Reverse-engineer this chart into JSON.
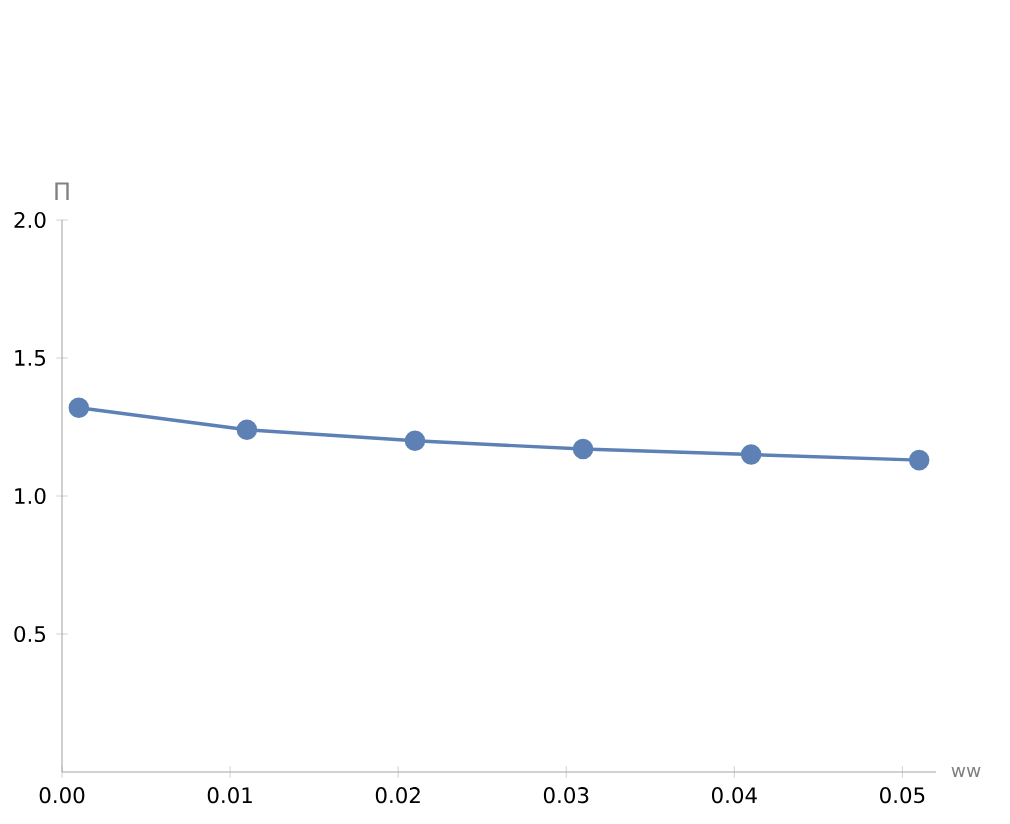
{
  "chart_data": {
    "type": "line",
    "xlabel": "ww",
    "ylabel": "Π",
    "x": [
      0.001,
      0.011,
      0.021,
      0.031,
      0.041,
      0.051
    ],
    "series": [
      {
        "color": "#5e81b5",
        "values": [
          1.32,
          1.24,
          1.2,
          1.17,
          1.15,
          1.13
        ]
      }
    ],
    "xlim": [
      0,
      0.052
    ],
    "ylim": [
      0,
      2.0
    ],
    "xticks": [
      {
        "value": 0,
        "label": "0.00"
      },
      0.01,
      0.02,
      0.03,
      0.04,
      0.05
    ],
    "yticks": [
      0.5,
      {
        "value": 1,
        "label": "1.0"
      },
      1.5,
      {
        "value": 2,
        "label": "2.0"
      }
    ],
    "marker": "circle",
    "line_style": "solid",
    "grid": false
  }
}
